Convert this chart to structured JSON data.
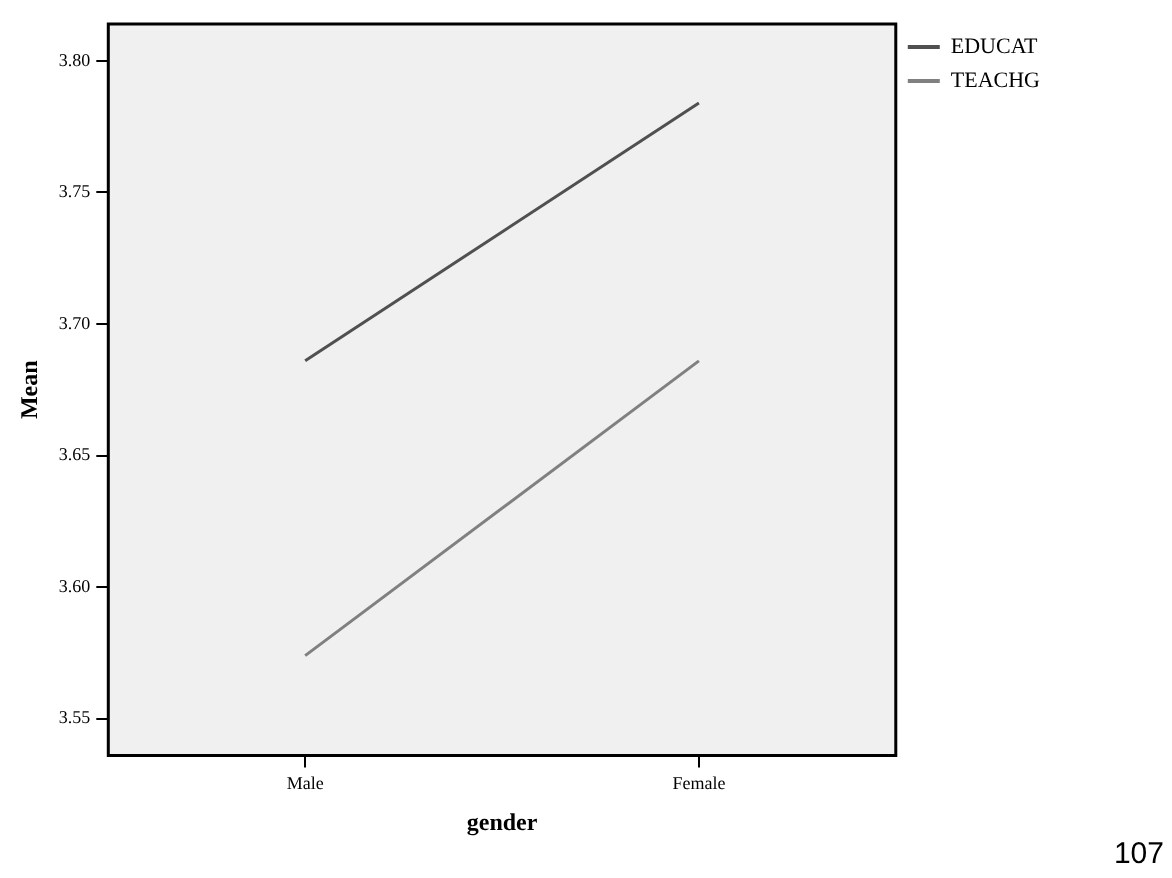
{
  "chart_data": {
    "type": "line",
    "xlabel": "gender",
    "ylabel": "Mean",
    "categories": [
      "Male",
      "Female"
    ],
    "series": [
      {
        "name": "EDUCAT",
        "color": "#505050",
        "values": [
          3.686,
          3.784
        ]
      },
      {
        "name": "TEACHG",
        "color": "#808080",
        "values": [
          3.574,
          3.686
        ]
      }
    ],
    "ylim": [
      3.536,
      3.814
    ],
    "yticks": [
      {
        "value": 3.55,
        "label": "3.55"
      },
      {
        "value": 3.6,
        "label": "3.60"
      },
      {
        "value": 3.65,
        "label": "3.65"
      },
      {
        "value": 3.7,
        "label": "3.70"
      },
      {
        "value": 3.75,
        "label": "3.75"
      },
      {
        "value": 3.8,
        "label": "3.80"
      }
    ],
    "grid": false,
    "legend": "top right",
    "marker": "none",
    "line_style": "solid",
    "annotations": [
      "107"
    ]
  }
}
